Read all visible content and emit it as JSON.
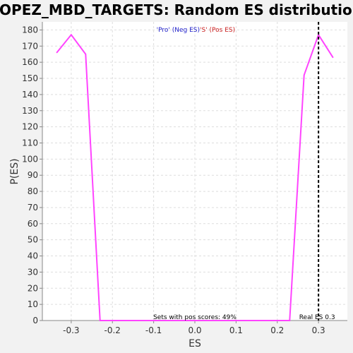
{
  "chart_data": {
    "type": "line",
    "title": "LOPEZ_MBD_TARGETS: Random ES distribution",
    "xlabel": "ES",
    "ylabel": "P(ES)",
    "xlim": [
      -0.37,
      0.37
    ],
    "ylim": [
      0,
      185
    ],
    "xticks": [
      -0.3,
      -0.2,
      -0.1,
      0.0,
      0.1,
      0.2,
      0.3
    ],
    "xtick_labels": [
      "-0.3",
      "-0.2",
      "-0.1",
      "0.0",
      "0.1",
      "0.2",
      "0.3"
    ],
    "yticks": [
      0,
      10,
      20,
      30,
      40,
      50,
      60,
      70,
      80,
      90,
      100,
      110,
      120,
      130,
      140,
      150,
      160,
      170,
      180
    ],
    "ytick_labels": [
      "0",
      "10",
      "20",
      "30",
      "40",
      "50",
      "60",
      "70",
      "80",
      "90",
      "100",
      "110",
      "120",
      "130",
      "140",
      "150",
      "160",
      "170",
      "180"
    ],
    "grid": true,
    "series": [
      {
        "color": "#ff44ff",
        "x": [
          -0.335,
          -0.3,
          -0.265,
          -0.23,
          0.23,
          0.265,
          0.3,
          0.335
        ],
        "y": [
          166,
          177,
          165,
          0,
          0,
          152,
          177,
          163
        ]
      }
    ],
    "real_es": {
      "value": 0.3,
      "label": "Real ES 0.3",
      "color": "#000000"
    },
    "annotations": {
      "neg_label": "'Pro' (Neg ES)",
      "neg_color": "#2222cc",
      "pos_label": "'S' (Pos ES)",
      "pos_color": "#cc2222",
      "sets_label": "Sets with pos scores: 49%"
    },
    "colors": {
      "background": "#f2f2f2",
      "plot_background": "#ffffff",
      "grid": "#dddddd",
      "axis": "#888888"
    }
  }
}
